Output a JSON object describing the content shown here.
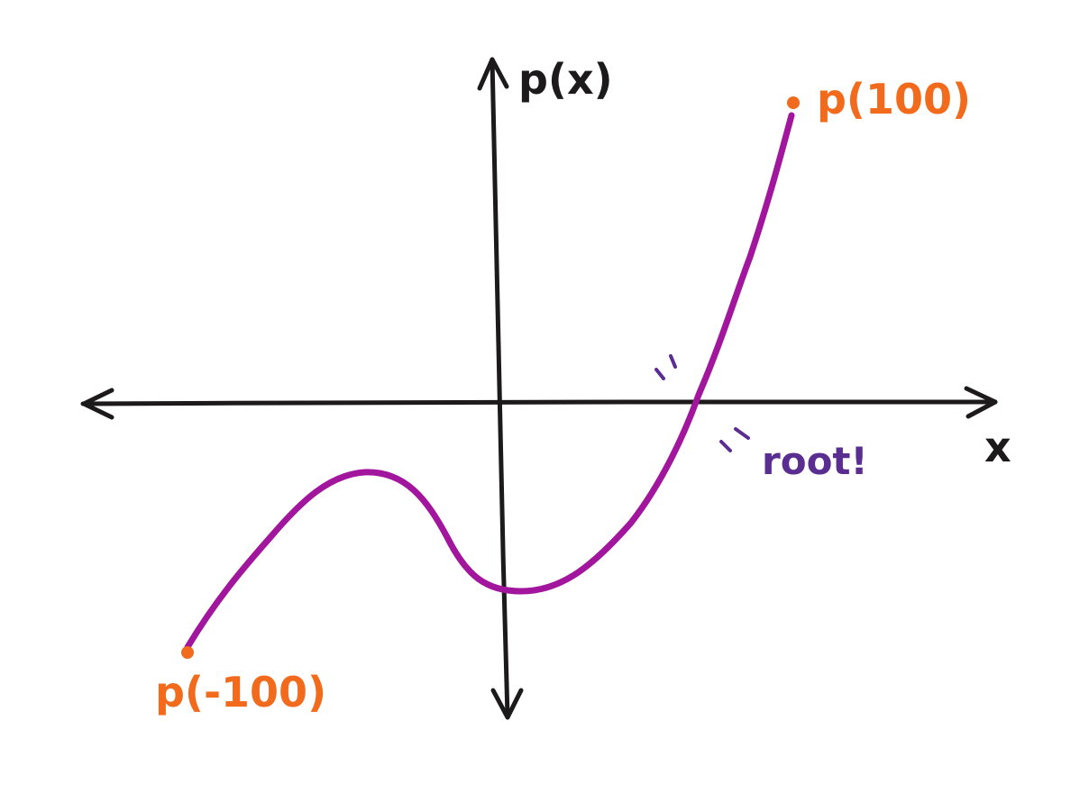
{
  "labels": {
    "y_axis": "p(x)",
    "x_axis": "x",
    "right_endpoint": "p(100)",
    "left_endpoint": "p(-100)",
    "root_note": "root!"
  },
  "colors": {
    "axis": "#1c1a1a",
    "curve": "#a1169c",
    "endpoint": "#f26b1d",
    "root_note": "#5a2e91",
    "background": "#ffffff"
  }
}
